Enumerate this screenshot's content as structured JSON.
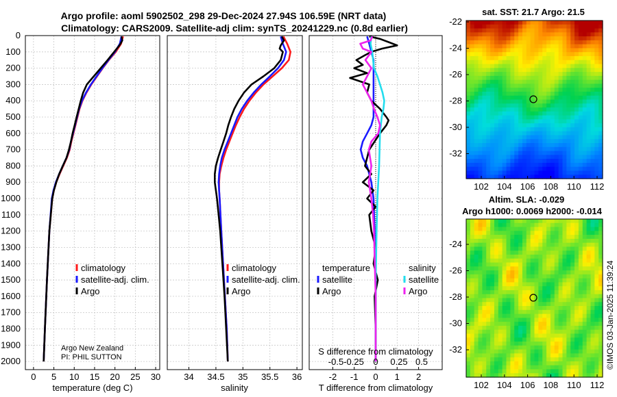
{
  "title": {
    "line1": "Argo profile: aoml 5902502_298 29-Dec-2024 27.94S 106.59E (NRT data)",
    "line2": "Climatology: CARS2009. Satellite-adj clim: synTS_20241229.nc (0.8d earlier)"
  },
  "colors": {
    "climatology": "#ff1a1a",
    "satellite_adj": "#1a1aff",
    "argo": "#000000",
    "s_sat": "#22ddee",
    "s_argo": "#ee22ee"
  },
  "depth_axis": {
    "ticks": [
      0,
      100,
      200,
      300,
      400,
      500,
      600,
      700,
      800,
      900,
      1000,
      1100,
      1200,
      1300,
      1400,
      1500,
      1600,
      1700,
      1800,
      1900,
      2000
    ],
    "ylim": [
      0,
      2050
    ]
  },
  "panel1": {
    "xlabel": "temperature (deg C)",
    "xlim": [
      -2,
      31
    ],
    "xticks": [
      0,
      5,
      10,
      15,
      20,
      25,
      30
    ],
    "xticklabels": [
      "0",
      "5",
      "10",
      "15",
      "20",
      "25",
      "30"
    ],
    "legend": {
      "climatology": "climatology",
      "satellite": "satellite-adj. clim.",
      "argo": "Argo"
    },
    "annotation": {
      "line1": "Argo New Zealand",
      "line2": "PI: PHIL SUTTON"
    }
  },
  "panel2": {
    "xlabel": "salinity",
    "xlim": [
      33.6,
      36.1
    ],
    "xticks": [
      34,
      34.5,
      35,
      35.5,
      36
    ],
    "xticklabels": [
      "34",
      "34.5",
      "35",
      "35.5",
      "36"
    ],
    "legend": {
      "climatology": "climatology",
      "satellite": "satellite-adj. clim.",
      "argo": "Argo"
    }
  },
  "panel3": {
    "xlabel": "T difference from climatology",
    "xlabel_top": "S difference from climatology",
    "xlim": [
      -3.1,
      3.1
    ],
    "xticks": [
      -2,
      -1,
      0,
      1,
      2
    ],
    "xticklabels": [
      "-2",
      "-1",
      "0",
      "1",
      "2"
    ],
    "s_ticklabels": [
      "-0.5",
      "-0.25",
      "0",
      "0.25",
      "0.5"
    ],
    "legend": {
      "temp_header": "temperature",
      "sal_header": "salinity",
      "t_sat": "satellite",
      "t_argo": "Argo",
      "s_sat": "satellite",
      "s_argo": "Argo"
    }
  },
  "map1": {
    "title": "sat. SST: 21.7 Argo: 21.5",
    "xticks": [
      "102",
      "104",
      "106",
      "108",
      "110",
      "112"
    ],
    "yticks": [
      "-22",
      "-24",
      "-26",
      "-28",
      "-30",
      "-32"
    ]
  },
  "map2": {
    "title1": "Altim. SLA: -0.029",
    "title2": "Argo h1000: 0.0069 h2000: -0.014",
    "xticks": [
      "102",
      "104",
      "106",
      "108",
      "110",
      "112"
    ],
    "yticks": [
      "-24",
      "-26",
      "-28",
      "-30",
      "-32"
    ]
  },
  "footer": {
    "stamp": "©IMOS 03-Jan-2025 11:39:24"
  },
  "chart_data": [
    {
      "type": "line",
      "title": "Argo profile: aoml 5902502_298 29-Dec-2024 27.94S 106.59E (NRT data)",
      "xlabel": "temperature (deg C)",
      "ylabel": "depth",
      "xlim": [
        -2,
        31
      ],
      "ylim": [
        2050,
        0
      ],
      "series": [
        {
          "name": "climatology",
          "color": "#ff1a1a",
          "depth": [
            5,
            50,
            100,
            150,
            200,
            250,
            300,
            350,
            400,
            450,
            500,
            550,
            600,
            650,
            700,
            750,
            800,
            850,
            900,
            950,
            1000,
            1200,
            1500,
            1800,
            2000
          ],
          "values": [
            22.0,
            21.5,
            20.2,
            18.5,
            17.0,
            15.6,
            14.2,
            13.0,
            12.0,
            11.3,
            10.8,
            10.3,
            9.8,
            9.3,
            8.9,
            8.2,
            7.3,
            6.4,
            5.6,
            5.0,
            4.6,
            3.9,
            3.3,
            2.8,
            2.5
          ]
        },
        {
          "name": "satellite-adj. clim.",
          "color": "#1a1aff",
          "depth": [
            5,
            50,
            100,
            150,
            200,
            250,
            300,
            350,
            400,
            450,
            500,
            550,
            600,
            650,
            700,
            750,
            800,
            850,
            900,
            950,
            1000,
            1200,
            1500,
            1800,
            2000
          ],
          "values": [
            21.6,
            21.2,
            20.0,
            18.4,
            16.9,
            15.5,
            14.1,
            12.9,
            11.9,
            11.2,
            10.7,
            10.2,
            9.7,
            9.2,
            8.8,
            8.1,
            7.2,
            6.3,
            5.5,
            4.9,
            4.5,
            3.9,
            3.3,
            2.8,
            2.5
          ]
        },
        {
          "name": "Argo",
          "color": "#000000",
          "depth": [
            5,
            30,
            60,
            100,
            150,
            200,
            250,
            300,
            350,
            400,
            450,
            500,
            550,
            600,
            650,
            700,
            750,
            800,
            850,
            900,
            950,
            1000,
            1200,
            1500,
            1800,
            2000
          ],
          "values": [
            21.6,
            21.8,
            21.1,
            19.8,
            18.2,
            16.5,
            14.8,
            13.1,
            12.2,
            11.6,
            11.1,
            10.6,
            10.1,
            9.6,
            9.2,
            8.7,
            8.1,
            7.2,
            6.3,
            5.6,
            5.0,
            4.6,
            3.9,
            3.3,
            2.8,
            2.5
          ]
        }
      ]
    },
    {
      "type": "line",
      "xlabel": "salinity",
      "ylabel": "depth",
      "xlim": [
        33.6,
        36.1
      ],
      "ylim": [
        2050,
        0
      ],
      "series": [
        {
          "name": "climatology",
          "color": "#ff1a1a",
          "depth": [
            5,
            50,
            100,
            150,
            200,
            250,
            300,
            350,
            400,
            450,
            500,
            550,
            600,
            650,
            700,
            750,
            800,
            850,
            900,
            950,
            1000,
            1200,
            1500,
            1800,
            2000
          ],
          "values": [
            35.75,
            35.82,
            35.88,
            35.85,
            35.72,
            35.55,
            35.38,
            35.24,
            35.12,
            35.02,
            34.94,
            34.87,
            34.81,
            34.75,
            34.69,
            34.64,
            34.6,
            34.57,
            34.56,
            34.56,
            34.57,
            34.6,
            34.65,
            34.7,
            34.72
          ]
        },
        {
          "name": "satellite-adj. clim.",
          "color": "#1a1aff",
          "depth": [
            5,
            50,
            100,
            150,
            200,
            250,
            300,
            350,
            400,
            450,
            500,
            550,
            600,
            650,
            700,
            750,
            800,
            850,
            900,
            950,
            1000,
            1200,
            1500,
            1800,
            2000
          ],
          "values": [
            35.7,
            35.74,
            35.8,
            35.76,
            35.65,
            35.5,
            35.34,
            35.2,
            35.08,
            34.98,
            34.9,
            34.84,
            34.78,
            34.72,
            34.66,
            34.61,
            34.58,
            34.56,
            34.55,
            34.56,
            34.57,
            34.6,
            34.65,
            34.7,
            34.72
          ]
        },
        {
          "name": "Argo",
          "color": "#000000",
          "depth": [
            5,
            30,
            60,
            80,
            100,
            150,
            200,
            250,
            300,
            350,
            400,
            450,
            500,
            550,
            600,
            650,
            700,
            750,
            800,
            850,
            900,
            950,
            1000,
            1100,
            1200,
            1400,
            1600,
            1800,
            2000
          ],
          "values": [
            35.72,
            35.76,
            35.7,
            35.68,
            35.74,
            35.7,
            35.58,
            35.38,
            35.16,
            35.02,
            34.92,
            34.84,
            34.78,
            34.73,
            34.69,
            34.64,
            34.59,
            34.54,
            34.5,
            34.48,
            34.48,
            34.5,
            34.52,
            34.55,
            34.58,
            34.62,
            34.66,
            34.69,
            34.72
          ]
        }
      ]
    },
    {
      "type": "line",
      "xlabel": "T difference from climatology",
      "xlabel_top": "S difference from climatology",
      "xlim": [
        -3.1,
        3.1
      ],
      "ylim": [
        2050,
        0
      ],
      "series": [
        {
          "name": "temperature satellite",
          "color": "#1a1aff",
          "depth": [
            5,
            50,
            100,
            150,
            200,
            300,
            400,
            500,
            550,
            600,
            650,
            700,
            750,
            800,
            850,
            900,
            1000,
            1200,
            1500,
            1800,
            2000
          ],
          "values": [
            -0.4,
            -0.3,
            -0.2,
            -0.1,
            -0.1,
            -0.1,
            -0.1,
            -0.1,
            -0.2,
            -0.4,
            -0.6,
            -0.7,
            -0.6,
            -0.4,
            -0.3,
            -0.2,
            -0.1,
            -0.05,
            0.0,
            0.0,
            0.0
          ]
        },
        {
          "name": "temperature Argo",
          "color": "#000000",
          "depth": [
            5,
            20,
            40,
            60,
            80,
            100,
            120,
            150,
            180,
            200,
            230,
            260,
            300,
            350,
            400,
            450,
            500,
            520,
            550,
            600,
            700,
            800,
            850,
            900,
            950,
            1000,
            1050,
            1100,
            1200,
            1300,
            1400,
            1500,
            1600,
            1800,
            2000
          ],
          "values": [
            -0.3,
            0.2,
            0.6,
            1.0,
            0.3,
            -0.2,
            -0.5,
            -0.9,
            -0.6,
            -1.0,
            -0.4,
            -1.2,
            -0.3,
            -0.4,
            -0.2,
            0.2,
            0.5,
            0.6,
            0.5,
            0.2,
            -0.3,
            -0.5,
            -0.2,
            -0.6,
            -0.1,
            -0.4,
            0.0,
            -0.3,
            -0.2,
            0.0,
            -0.1,
            0.1,
            -0.05,
            0.0,
            0.0
          ]
        },
        {
          "name": "salinity satellite",
          "color": "#22ddee",
          "depth": [
            5,
            50,
            100,
            150,
            200,
            250,
            300,
            350,
            400,
            450,
            500,
            600,
            800,
            1000,
            1200,
            1500,
            1800,
            2000
          ],
          "values": [
            -0.05,
            -0.06,
            -0.04,
            -0.03,
            -0.02,
            0.02,
            0.05,
            0.08,
            0.1,
            0.09,
            0.07,
            0.05,
            0.04,
            0.02,
            0.01,
            0.0,
            0.0,
            0.0
          ]
        },
        {
          "name": "salinity Argo",
          "color": "#ee22ee",
          "depth": [
            5,
            30,
            50,
            80,
            100,
            150,
            200,
            250,
            300,
            350,
            400,
            450,
            500,
            550,
            600,
            650,
            700,
            800,
            900,
            1000,
            1100,
            1200,
            1400,
            1600,
            1800,
            2000
          ],
          "values": [
            -0.04,
            -0.06,
            -0.18,
            -0.15,
            -0.05,
            -0.12,
            -0.05,
            -0.1,
            -0.15,
            -0.1,
            -0.05,
            -0.02,
            0.02,
            0.05,
            0.03,
            -0.05,
            -0.08,
            -0.05,
            -0.08,
            -0.05,
            -0.03,
            -0.02,
            -0.01,
            0.0,
            0.0,
            0.0
          ]
        }
      ]
    }
  ]
}
